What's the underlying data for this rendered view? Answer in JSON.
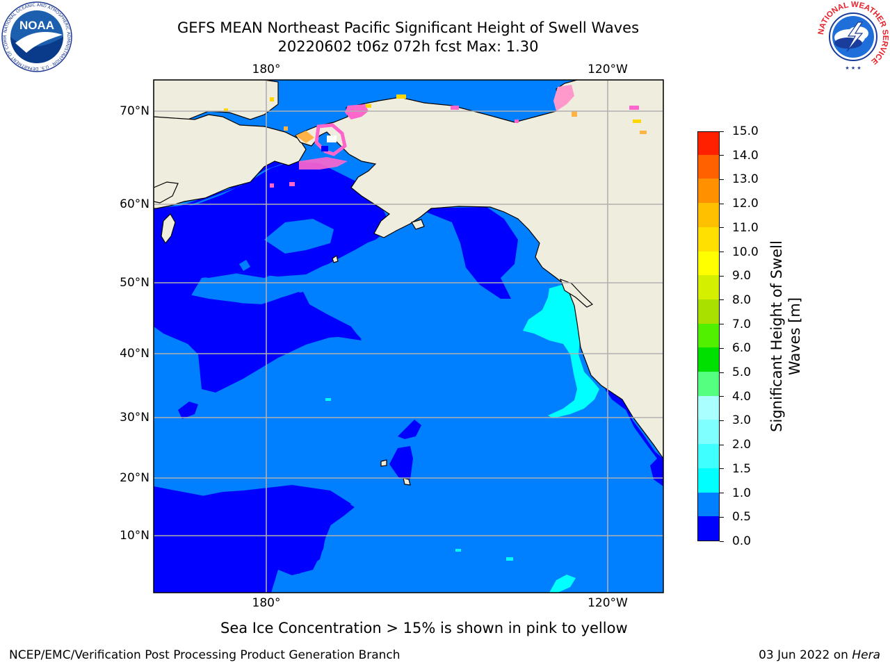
{
  "title": {
    "line1": "GEFS MEAN Northeast Pacific Significant Height of Swell Waves",
    "line2": "20220602 t06z 072h fcst   Max: 1.30"
  },
  "map": {
    "lon_labels": [
      "180°",
      "120°W"
    ],
    "lat_labels": [
      "70°N",
      "60°N",
      "50°N",
      "40°N",
      "30°N",
      "20°N",
      "10°N"
    ],
    "land_color": "#efedde",
    "grid_color": "#b0b0b0"
  },
  "colorbar": {
    "label": "Significant Height of Swell Waves [m]",
    "ticks": [
      "0.0",
      "0.5",
      "1.0",
      "1.5",
      "2.0",
      "3.0",
      "4.0",
      "5.0",
      "6.0",
      "7.0",
      "8.0",
      "9.0",
      "10.0",
      "11.0",
      "12.0",
      "13.0",
      "14.0",
      "15.0"
    ],
    "colors": [
      "#0000ff",
      "#0080ff",
      "#00ffff",
      "#40ffff",
      "#7fffff",
      "#aaffff",
      "#55ff7f",
      "#00e000",
      "#50f000",
      "#aae000",
      "#d4f000",
      "#ffff00",
      "#ffe000",
      "#ffc000",
      "#ff9000",
      "#ff6000",
      "#ff2000"
    ]
  },
  "note": "Sea Ice Concentration > 15% is shown in pink to yellow",
  "footer": {
    "left": "NCEP/EMC/Verification Post Processing Product Generation Branch",
    "right_date": "03 Jun 2022 on ",
    "right_host": "Hera"
  },
  "logos": {
    "noaa_text": "NOAA",
    "noaa_ring": "NATIONAL OCEANIC AND ATMOSPHERIC ADMINISTRATION · U.S. DEPARTMENT OF COMMERCE",
    "nws_ring": "NATIONAL WEATHER SERVICE"
  }
}
